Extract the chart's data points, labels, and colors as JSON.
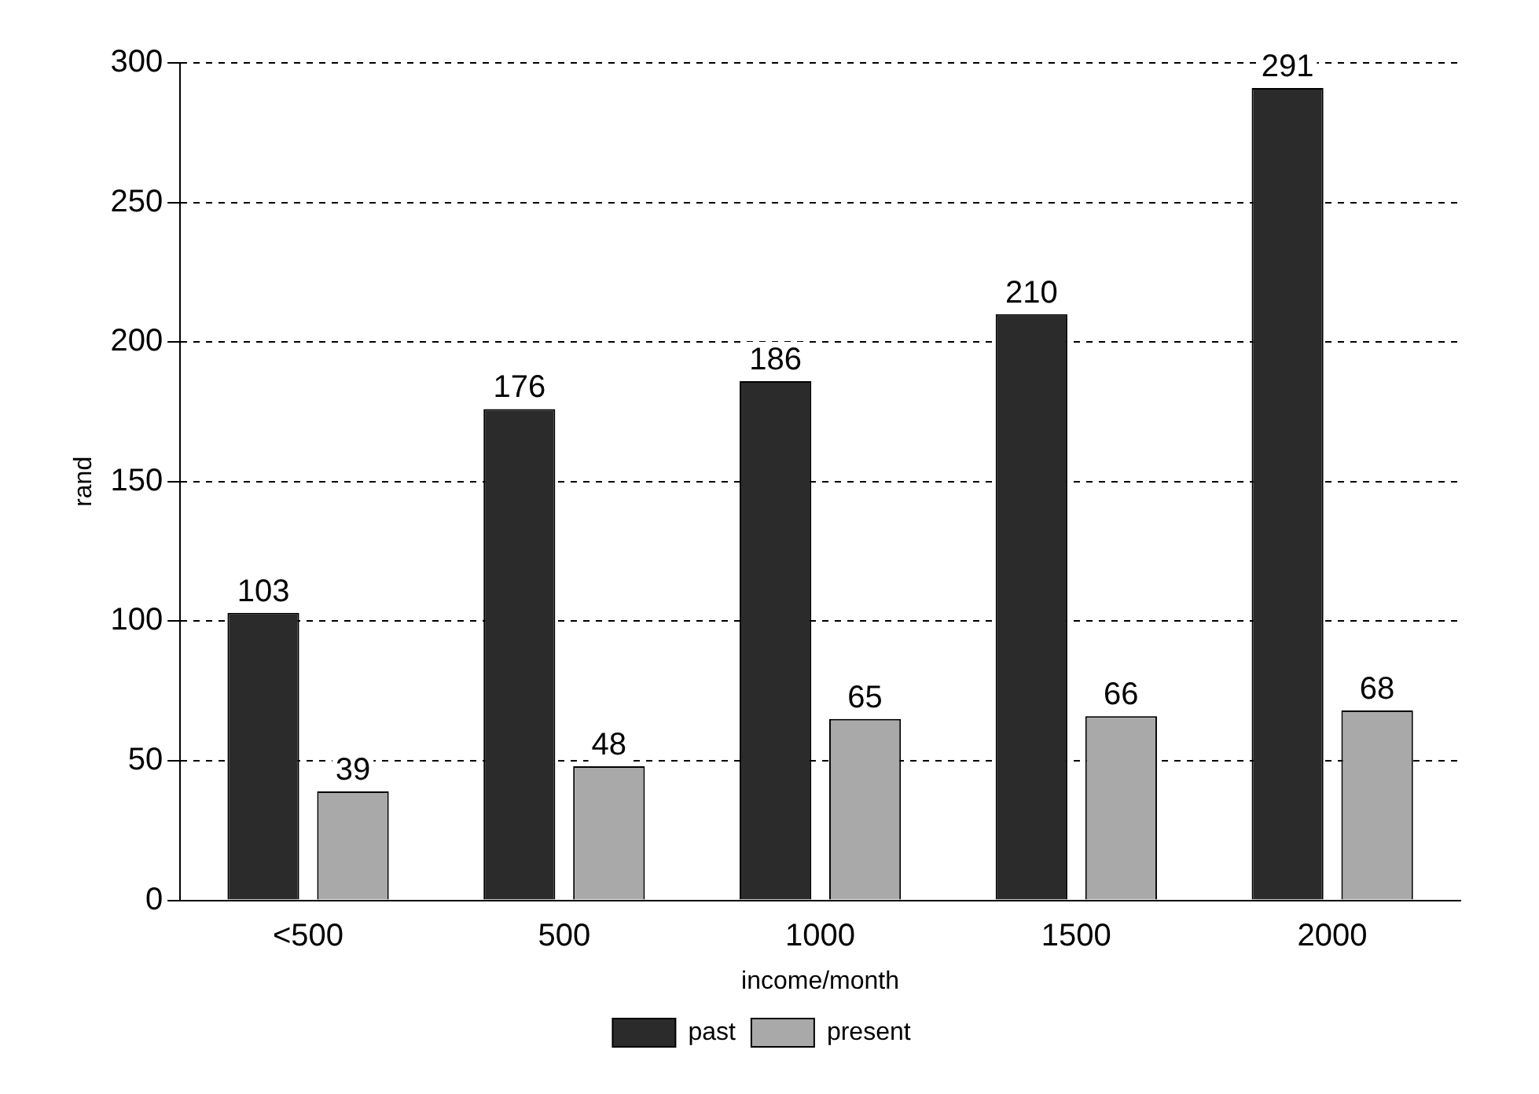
{
  "chart_data": {
    "type": "bar",
    "xlabel": "income/month",
    "ylabel": "rand",
    "categories": [
      "<500",
      "500",
      "1000",
      "1500",
      "2000"
    ],
    "series": [
      {
        "name": "past",
        "color": "#2b2b2b",
        "values": [
          103,
          176,
          186,
          210,
          291
        ]
      },
      {
        "name": "present",
        "color": "#a9a9a9",
        "values": [
          39,
          48,
          65,
          66,
          68
        ]
      }
    ],
    "ylim": [
      0,
      300
    ],
    "yticks": [
      0,
      50,
      100,
      150,
      200,
      250,
      300
    ],
    "grid": "y",
    "legend": "bottom",
    "data_labels": true
  }
}
